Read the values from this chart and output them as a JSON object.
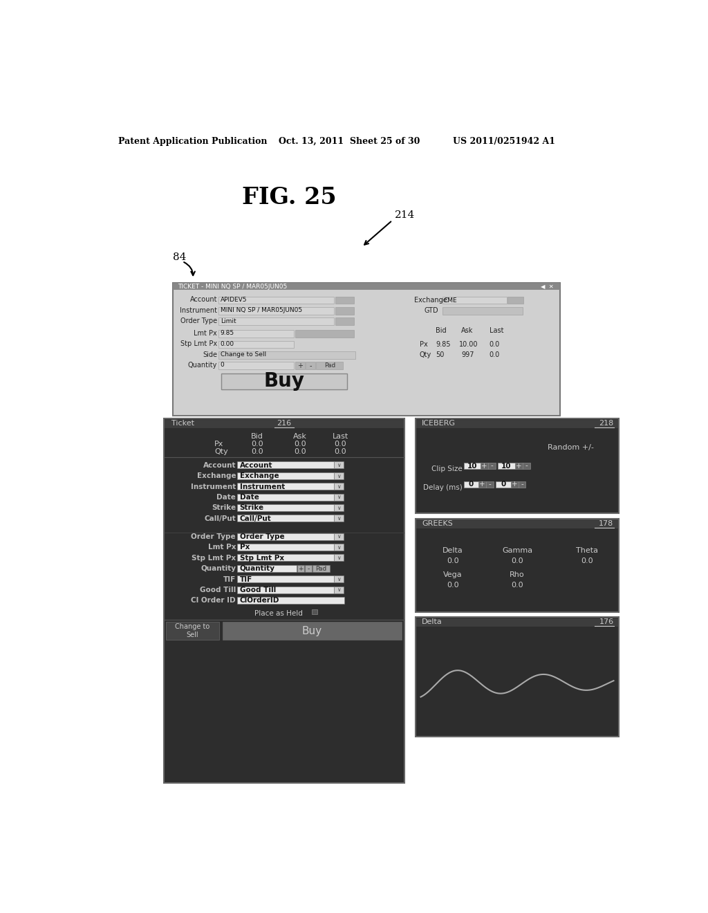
{
  "header_left": "Patent Application Publication",
  "header_mid": "Oct. 13, 2011  Sheet 25 of 30",
  "header_right": "US 2011/0251942 A1",
  "fig_title": "FIG. 25",
  "label_214": "214",
  "label_84": "84",
  "label_216": "216",
  "label_218": "218",
  "label_178": "178",
  "label_176": "176",
  "bg_color": "#ffffff",
  "dark_bg": "#2d2d2d",
  "dark_title": "#3d3d3d",
  "panel_border": "#666666",
  "field_bg": "#e8e8e8",
  "field_bg_dark": "#d0d0d0",
  "btn_bg": "#aaaaaa",
  "top_win_bg": "#d0d0d0",
  "top_win_title": "#888888",
  "wave_color": "#aaaaaa"
}
